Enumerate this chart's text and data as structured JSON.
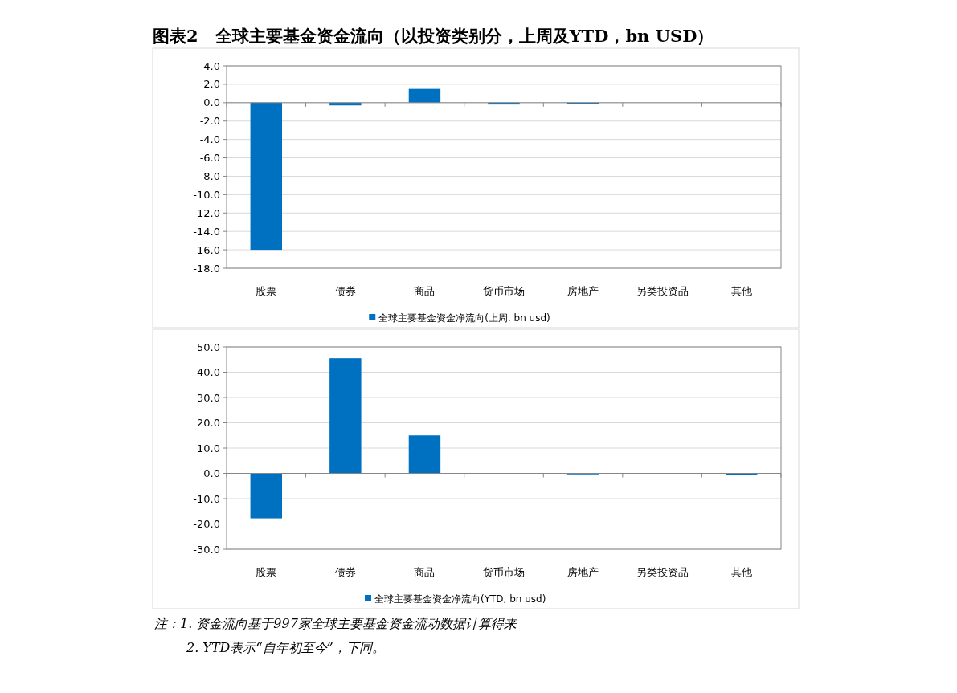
{
  "chart_data": [
    {
      "type": "bar",
      "title": "图表2　全球主要基金资金流向（以投资类别分，上周及YTD，bn USD）",
      "categories": [
        "股票",
        "债券",
        "商品",
        "货币市场",
        "房地产",
        "另类投资品",
        "其他"
      ],
      "series": [
        {
          "name": "全球主要基金资金净流向(上周, bn usd)",
          "color": "#0070c0",
          "values": [
            -16.0,
            -0.3,
            1.5,
            -0.2,
            -0.1,
            null,
            null
          ]
        }
      ],
      "ylim": [
        -18,
        4
      ],
      "yticks": [
        {
          "value": 4,
          "label": "4.0"
        },
        {
          "value": 2,
          "label": "2.0"
        },
        {
          "value": 0,
          "label": "0.0"
        },
        {
          "value": -2,
          "label": "-2.0"
        },
        {
          "value": -4,
          "label": "-4.0"
        },
        {
          "value": -6,
          "label": "-6.0"
        },
        {
          "value": -8,
          "label": "-8.0"
        },
        {
          "value": -10,
          "label": "-10.0"
        },
        {
          "value": -12,
          "label": "-12.0"
        },
        {
          "value": -14,
          "label": "-14.0"
        },
        {
          "value": -16,
          "label": "-16.0"
        },
        {
          "value": -18,
          "label": "-18.0"
        }
      ],
      "grid": "y",
      "legend": "bottom"
    },
    {
      "type": "bar",
      "categories": [
        "股票",
        "债券",
        "商品",
        "货币市场",
        "房地产",
        "另类投资品",
        "其他"
      ],
      "series": [
        {
          "name": "全球主要基金资金净流向(YTD, bn usd)",
          "color": "#0070c0",
          "values": [
            -17.8,
            45.5,
            15.0,
            null,
            -0.4,
            0,
            -0.7
          ]
        }
      ],
      "ylim": [
        -30,
        50
      ],
      "yticks": [
        {
          "value": 50,
          "label": "50.0"
        },
        {
          "value": 40,
          "label": "40.0"
        },
        {
          "value": 30,
          "label": "30.0"
        },
        {
          "value": 20,
          "label": "20.0"
        },
        {
          "value": 10,
          "label": "10.0"
        },
        {
          "value": 0,
          "label": "0.0"
        },
        {
          "value": -10,
          "label": "-10.0"
        },
        {
          "value": -20,
          "label": "-20.0"
        },
        {
          "value": -30,
          "label": "-30.0"
        }
      ],
      "grid": "y",
      "legend": "bottom",
      "annotations": [
        "注：1.  资金流向基于997家全球主要基金资金流动数据计算得来",
        "2.  YTD表示“自年初至今”，下同。"
      ]
    }
  ]
}
